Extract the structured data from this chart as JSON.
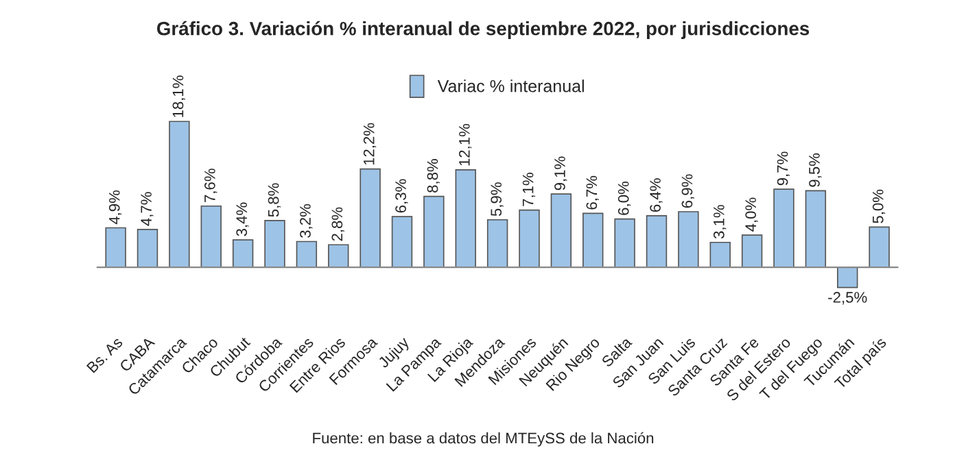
{
  "chart_data": {
    "type": "bar",
    "title": "Gráfico 3. Variación % interanual de septiembre 2022, por jurisdicciones",
    "categories": [
      "Bs. As",
      "CABA",
      "Catamarca",
      "Chaco",
      "Chubut",
      "Córdoba",
      "Corrientes",
      "Entre Rios",
      "Formosa",
      "Jujuy",
      "La Pampa",
      "La Rioja",
      "Mendoza",
      "Misiones",
      "Neuquén",
      "Rio Negro",
      "Salta",
      "San Juan",
      "San Luis",
      "Santa Cruz",
      "Santa Fe",
      "S del Estero",
      "T del Fuego",
      "Tucumán",
      "Total país"
    ],
    "series": [
      {
        "name": "Variac % interanual",
        "color": "#9dc3e6",
        "values": [
          4.9,
          4.7,
          18.1,
          7.6,
          3.4,
          5.8,
          3.2,
          2.8,
          12.2,
          6.3,
          8.8,
          12.1,
          5.9,
          7.1,
          9.1,
          6.7,
          6.0,
          6.4,
          6.9,
          3.1,
          4.0,
          9.7,
          9.5,
          -2.5,
          5.0
        ],
        "value_labels": [
          "4,9%",
          "4,7%",
          "18,1%",
          "7,6%",
          "3,4%",
          "5,8%",
          "3,2%",
          "2,8%",
          "12,2%",
          "6,3%",
          "8,8%",
          "12,1%",
          "5,9%",
          "7,1%",
          "9,1%",
          "6,7%",
          "6,0%",
          "6,4%",
          "6,9%",
          "3,1%",
          "4,0%",
          "9,7%",
          "9,5%",
          "-2,5%",
          "5,0%"
        ]
      }
    ],
    "legend": "top",
    "tick_labels": "x",
    "grid": false,
    "annotations": [
      "Fuente: en base a datos del MTEySS de la Nación"
    ]
  }
}
